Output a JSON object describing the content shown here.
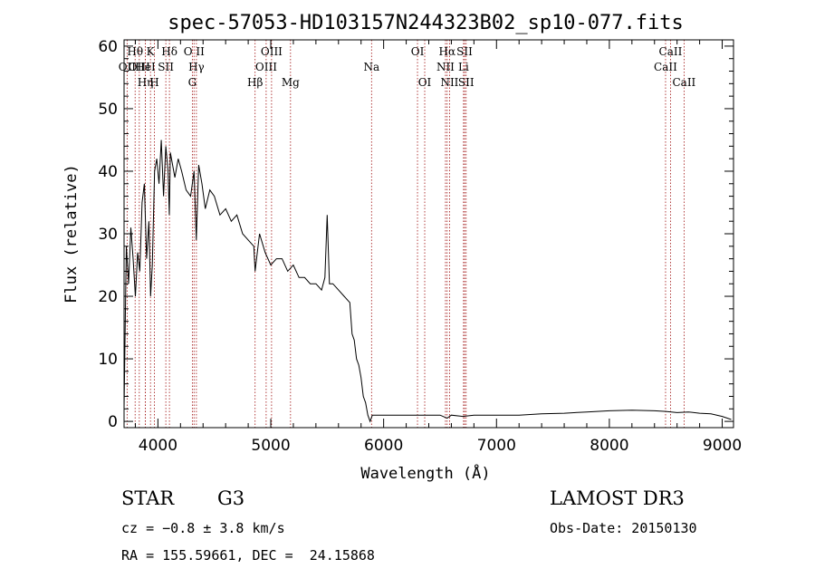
{
  "chart_data": {
    "type": "line",
    "title": "spec-57053-HD103157N244323B02_sp10-077.fits",
    "xlabel": "Wavelength (Å)",
    "ylabel": "Flux (relative)",
    "xlim": [
      3700,
      9100
    ],
    "ylim": [
      -1,
      61
    ],
    "xticks": [
      4000,
      5000,
      6000,
      7000,
      8000,
      9000
    ],
    "yticks": [
      0,
      10,
      20,
      30,
      40,
      50,
      60
    ],
    "grid": false,
    "series": [
      {
        "x": [
          3700,
          3720,
          3740,
          3760,
          3780,
          3800,
          3820,
          3840,
          3860,
          3880,
          3900,
          3920,
          3935,
          3950,
          3970,
          3990,
          4010,
          4030,
          4050,
          4070,
          4090,
          4101,
          4110,
          4130,
          4150,
          4180,
          4210,
          4250,
          4290,
          4320,
          4340,
          4361,
          4390,
          4420,
          4460,
          4500,
          4550,
          4600,
          4650,
          4700,
          4750,
          4800,
          4850,
          4861,
          4900,
          4950,
          5000,
          5050,
          5100,
          5150,
          5200,
          5250,
          5300,
          5350,
          5400,
          5450,
          5480,
          5500,
          5520,
          5550,
          5600,
          5650,
          5700,
          5720,
          5740,
          5760,
          5780,
          5800,
          5820,
          5840,
          5860,
          5880,
          5900,
          5950,
          6000,
          6100,
          6200,
          6300,
          6400,
          6500,
          6563,
          6600,
          6700,
          6800,
          6900,
          7000,
          7200,
          7400,
          7600,
          7800,
          8000,
          8200,
          8400,
          8500,
          8600,
          8700,
          8800,
          8900,
          9000,
          9080
        ],
        "y": [
          2,
          28,
          22,
          31,
          26,
          20,
          27,
          24,
          35,
          38,
          26,
          32,
          20,
          25,
          40,
          42,
          38,
          45,
          36,
          44,
          40,
          33,
          43,
          41,
          39,
          42,
          40,
          37,
          36,
          40,
          29,
          41,
          38,
          34,
          37,
          36,
          33,
          34,
          32,
          33,
          30,
          29,
          28,
          24,
          30,
          27,
          25,
          26,
          26,
          24,
          25,
          23,
          23,
          22,
          22,
          21,
          23,
          33,
          22,
          22,
          21,
          20,
          19,
          14,
          13,
          10,
          9,
          7,
          4,
          3,
          1,
          0,
          1,
          1,
          1,
          1,
          1,
          1,
          1,
          1,
          0.5,
          1,
          0.8,
          1,
          1,
          1,
          1,
          1.2,
          1.3,
          1.5,
          1.7,
          1.8,
          1.7,
          1.6,
          1.4,
          1.5,
          1.3,
          1.2,
          0.8,
          0.3
        ]
      }
    ],
    "line_markers": [
      {
        "label": "OII",
        "x": 3727,
        "row": 2
      },
      {
        "label": "Hθ",
        "x": 3798,
        "row": 1
      },
      {
        "label": "OIII",
        "x": 3835,
        "row": 2
      },
      {
        "label": "Hη",
        "x": 3889,
        "row": 3
      },
      {
        "label": "K",
        "x": 3934,
        "row": 1
      },
      {
        "label": "HeI",
        "x": 3889,
        "row": 2
      },
      {
        "label": "SII",
        "x": 4070,
        "row": 2
      },
      {
        "label": "H",
        "x": 3969,
        "row": 3
      },
      {
        "label": "Hδ",
        "x": 4102,
        "row": 1
      },
      {
        "label": "O II",
        "x": 4320,
        "row": 1
      },
      {
        "label": "Hγ",
        "x": 4341,
        "row": 2
      },
      {
        "label": "G",
        "x": 4305,
        "row": 3
      },
      {
        "label": "Hβ",
        "x": 4861,
        "row": 3
      },
      {
        "label": "OIII",
        "x": 5007,
        "row": 1
      },
      {
        "label": "OIII",
        "x": 4959,
        "row": 2
      },
      {
        "label": "Mg",
        "x": 5175,
        "row": 3
      },
      {
        "label": "Na",
        "x": 5893,
        "row": 2
      },
      {
        "label": "OI",
        "x": 6300,
        "row": 1
      },
      {
        "label": "OI",
        "x": 6364,
        "row": 3
      },
      {
        "label": "Hα",
        "x": 6563,
        "row": 1
      },
      {
        "label": "NII",
        "x": 6548,
        "row": 2
      },
      {
        "label": "NII",
        "x": 6584,
        "row": 3
      },
      {
        "label": "SII",
        "x": 6717,
        "row": 1
      },
      {
        "label": "Li",
        "x": 6708,
        "row": 2
      },
      {
        "label": "SII",
        "x": 6731,
        "row": 3
      },
      {
        "label": "CaII",
        "x": 8542,
        "row": 1
      },
      {
        "label": "CaII",
        "x": 8498,
        "row": 2
      },
      {
        "label": "CaII",
        "x": 8662,
        "row": 3
      }
    ]
  },
  "info": {
    "object_class": "STAR",
    "subclass": "G3",
    "survey": "LAMOST DR3",
    "cz": "cz = −0.8 ± 3.8 km/s",
    "obs_date": "Obs-Date: 20150130",
    "coords": "RA = 155.59661, DEC =  24.15868"
  }
}
